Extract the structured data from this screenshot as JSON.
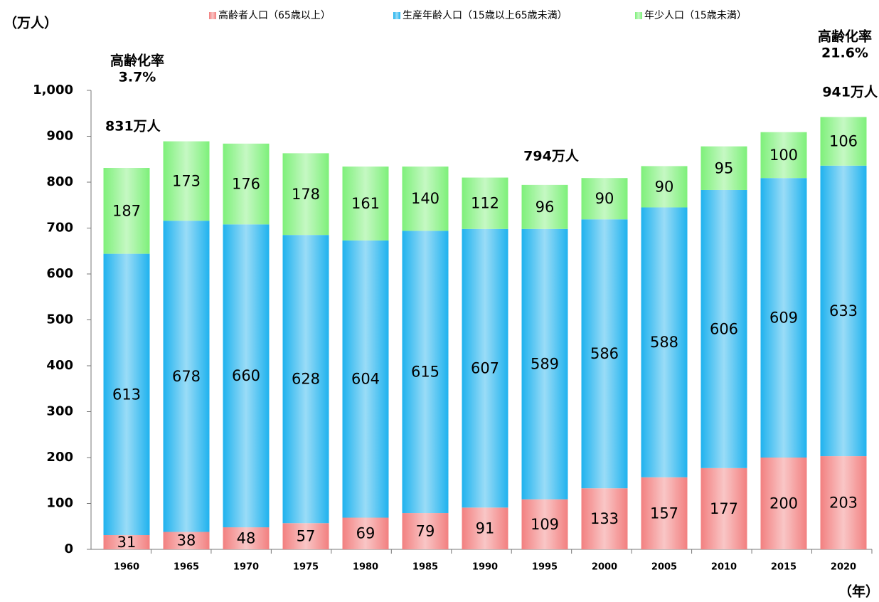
{
  "chart_data": {
    "type": "stacked_bar",
    "y_axis_label": "（万人）",
    "x_axis_label": "（年）",
    "categories": [
      "1960",
      "1965",
      "1970",
      "1975",
      "1980",
      "1985",
      "1990",
      "1995",
      "2000",
      "2005",
      "2010",
      "2015",
      "2020"
    ],
    "series": [
      {
        "name": "高齢者人口（65歳以上）",
        "color": "#f28080",
        "values": [
          31,
          38,
          48,
          57,
          69,
          79,
          91,
          109,
          133,
          157,
          177,
          200,
          203
        ]
      },
      {
        "name": "生産年齢人口（15歳以上65歳未満）",
        "color": "#1fb2ee",
        "values": [
          613,
          678,
          660,
          628,
          604,
          615,
          607,
          589,
          586,
          588,
          606,
          609,
          633
        ]
      },
      {
        "name": "年少人口（15歳未満）",
        "color": "#7ef07a",
        "values": [
          187,
          173,
          176,
          178,
          161,
          140,
          112,
          96,
          90,
          90,
          95,
          100,
          106
        ]
      }
    ],
    "annotations": [
      "高齢化率",
      "3.7%",
      "831万人",
      "794万人",
      "高齢化率",
      "21.6%",
      "941万人"
    ],
    "ylim": [
      0,
      1000
    ],
    "yticks": [
      0,
      100,
      200,
      300,
      400,
      500,
      600,
      700,
      800,
      900,
      {
        "value": 1000,
        "label": "1,000"
      }
    ],
    "legend": "top"
  }
}
